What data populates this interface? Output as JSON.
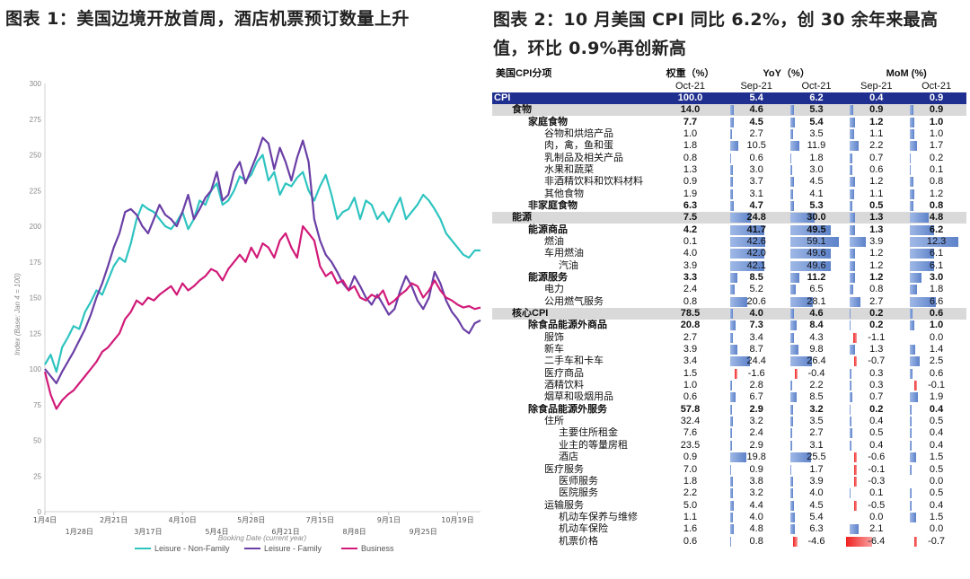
{
  "left": {
    "title": "图表 1：美国边境开放首周，酒店机票预订数量上升",
    "chart_data": {
      "type": "line",
      "title": "",
      "xlabel": "Booking Date (current year)",
      "ylabel": "Index (Base: Jan 4 = 100)",
      "ylim": [
        0,
        300
      ],
      "yticks": [
        0,
        25,
        50,
        75,
        100,
        125,
        150,
        175,
        200,
        225,
        250,
        275,
        300
      ],
      "xticks_top": [
        "1月4日",
        "2月21日",
        "4月10日",
        "5月28日",
        "7月15日",
        "9月1日",
        "10月19日"
      ],
      "xticks_bottom": [
        "1月28日",
        "3月17日",
        "5月4日",
        "6月21日",
        "8月8日",
        "9月25日"
      ],
      "x_range": [
        "1月4日",
        "11月1日"
      ],
      "legend_position": "bottom",
      "series": [
        {
          "name": "Leisure - Non-Family",
          "color": "#2ec4c0",
          "x": [
            0,
            4,
            8,
            12,
            16,
            20,
            24,
            28,
            32,
            36,
            40,
            44,
            48,
            52,
            56,
            60,
            64,
            68,
            72,
            76,
            80,
            84,
            88,
            92,
            96,
            100,
            104,
            108,
            112,
            116,
            120,
            124,
            128,
            132,
            136,
            140,
            144,
            148,
            152,
            156,
            160,
            164,
            168,
            172,
            176,
            180,
            184,
            188,
            192,
            196,
            200,
            204,
            208,
            212,
            216,
            220,
            224,
            228,
            232,
            236,
            240,
            244,
            248,
            252,
            256,
            260,
            264,
            268,
            272,
            276,
            280,
            284,
            288,
            292,
            296,
            300,
            304
          ],
          "values": [
            103,
            110,
            98,
            115,
            122,
            130,
            128,
            140,
            147,
            155,
            152,
            162,
            172,
            178,
            175,
            188,
            205,
            215,
            212,
            210,
            205,
            200,
            198,
            203,
            210,
            198,
            205,
            218,
            215,
            225,
            230,
            215,
            218,
            225,
            235,
            232,
            236,
            245,
            250,
            232,
            238,
            222,
            230,
            228,
            234,
            238,
            225,
            218,
            228,
            236,
            222,
            205,
            210,
            212,
            220,
            205,
            218,
            215,
            205,
            210,
            203,
            212,
            220,
            205,
            210,
            215,
            222,
            218,
            212,
            205,
            195,
            190,
            185,
            180,
            178,
            183,
            183
          ]
        },
        {
          "name": "Leisure - Family",
          "color": "#6a3fa6",
          "x": [
            0,
            4,
            8,
            12,
            16,
            20,
            24,
            28,
            32,
            36,
            40,
            44,
            48,
            52,
            56,
            60,
            64,
            68,
            72,
            76,
            80,
            84,
            88,
            92,
            96,
            100,
            104,
            108,
            112,
            116,
            120,
            124,
            128,
            132,
            136,
            140,
            144,
            148,
            152,
            156,
            160,
            164,
            168,
            172,
            176,
            180,
            184,
            188,
            192,
            196,
            200,
            204,
            208,
            212,
            216,
            220,
            224,
            228,
            232,
            236,
            240,
            244,
            248,
            252,
            256,
            260,
            264,
            268,
            272,
            276,
            280,
            284,
            288,
            292,
            296,
            300,
            304
          ],
          "values": [
            100,
            95,
            90,
            98,
            105,
            112,
            120,
            128,
            138,
            150,
            160,
            172,
            185,
            195,
            210,
            212,
            208,
            200,
            195,
            205,
            215,
            208,
            205,
            200,
            210,
            222,
            205,
            212,
            220,
            225,
            238,
            218,
            222,
            238,
            245,
            230,
            240,
            250,
            262,
            258,
            240,
            255,
            245,
            232,
            248,
            260,
            245,
            205,
            190,
            180,
            175,
            168,
            160,
            155,
            165,
            158,
            150,
            145,
            152,
            145,
            138,
            142,
            155,
            165,
            158,
            148,
            142,
            150,
            168,
            160,
            148,
            140,
            135,
            128,
            125,
            132,
            134
          ]
        },
        {
          "name": "Business",
          "color": "#d11a78",
          "x": [
            0,
            4,
            8,
            12,
            16,
            20,
            24,
            28,
            32,
            36,
            40,
            44,
            48,
            52,
            56,
            60,
            64,
            68,
            72,
            76,
            80,
            84,
            88,
            92,
            96,
            100,
            104,
            108,
            112,
            116,
            120,
            124,
            128,
            132,
            136,
            140,
            144,
            148,
            152,
            156,
            160,
            164,
            168,
            172,
            176,
            180,
            184,
            188,
            192,
            196,
            200,
            204,
            208,
            212,
            216,
            220,
            224,
            228,
            232,
            236,
            240,
            244,
            248,
            252,
            256,
            260,
            264,
            268,
            272,
            276,
            280,
            284,
            288,
            292,
            296,
            300,
            304
          ],
          "values": [
            98,
            82,
            72,
            78,
            82,
            85,
            90,
            95,
            100,
            105,
            112,
            115,
            120,
            125,
            135,
            140,
            148,
            145,
            150,
            148,
            152,
            155,
            158,
            152,
            160,
            155,
            158,
            162,
            165,
            170,
            168,
            162,
            170,
            175,
            180,
            175,
            185,
            178,
            188,
            185,
            178,
            190,
            195,
            185,
            178,
            200,
            195,
            190,
            172,
            165,
            168,
            160,
            162,
            155,
            158,
            150,
            148,
            152,
            150,
            155,
            145,
            148,
            152,
            155,
            160,
            158,
            150,
            155,
            162,
            155,
            150,
            148,
            145,
            143,
            144,
            142,
            143
          ]
        }
      ]
    }
  },
  "right": {
    "title": "图表 2：10 月美国 CPI 同比 6.2%，创 30 余年来最高值，环比 0.9%再创新高",
    "header": {
      "item": "美国CPI分项",
      "weight": "权重（%）",
      "yoy": "YoY（%）",
      "mom": "MoM (%)",
      "weight_period": "Oct-21",
      "yoy_sep": "Sep-21",
      "yoy_oct": "Oct-21",
      "mom_sep": "Sep-21",
      "mom_oct": "Oct-21"
    },
    "rows": [
      {
        "name": "CPI",
        "level": 0,
        "style": "cpi",
        "weight": "100.0",
        "yoy_sep": 5.4,
        "yoy_oct": 6.2,
        "mom_sep": 0.4,
        "mom_oct": 0.9
      },
      {
        "name": "食物",
        "level": 1,
        "style": "grey",
        "weight": "14.0",
        "yoy_sep": 4.6,
        "yoy_oct": 5.3,
        "mom_sep": 0.9,
        "mom_oct": 0.9
      },
      {
        "name": "家庭食物",
        "level": 2,
        "style": "bold",
        "weight": "7.7",
        "yoy_sep": 4.5,
        "yoy_oct": 5.4,
        "mom_sep": 1.2,
        "mom_oct": 1.0
      },
      {
        "name": "谷物和烘焙产品",
        "level": 3,
        "style": "",
        "weight": "1.0",
        "yoy_sep": 2.7,
        "yoy_oct": 3.5,
        "mom_sep": 1.1,
        "mom_oct": 1.0
      },
      {
        "name": "肉，禽，鱼和蛋",
        "level": 3,
        "style": "",
        "weight": "1.8",
        "yoy_sep": 10.5,
        "yoy_oct": 11.9,
        "mom_sep": 2.2,
        "mom_oct": 1.7
      },
      {
        "name": "乳制品及相关产品",
        "level": 3,
        "style": "",
        "weight": "0.8",
        "yoy_sep": 0.6,
        "yoy_oct": 1.8,
        "mom_sep": 0.7,
        "mom_oct": 0.2
      },
      {
        "name": "水果和蔬菜",
        "level": 3,
        "style": "",
        "weight": "1.3",
        "yoy_sep": 3.0,
        "yoy_oct": 3.0,
        "mom_sep": 0.6,
        "mom_oct": 0.1
      },
      {
        "name": "非酒精饮料和饮料材料",
        "level": 3,
        "style": "",
        "weight": "0.9",
        "yoy_sep": 3.7,
        "yoy_oct": 4.5,
        "mom_sep": 1.2,
        "mom_oct": 0.8
      },
      {
        "name": "其他食物",
        "level": 3,
        "style": "",
        "weight": "1.9",
        "yoy_sep": 3.1,
        "yoy_oct": 4.1,
        "mom_sep": 1.1,
        "mom_oct": 1.2
      },
      {
        "name": "非家庭食物",
        "level": 2,
        "style": "bold",
        "weight": "6.3",
        "yoy_sep": 4.7,
        "yoy_oct": 5.3,
        "mom_sep": 0.5,
        "mom_oct": 0.8
      },
      {
        "name": "能源",
        "level": 1,
        "style": "grey",
        "weight": "7.5",
        "yoy_sep": 24.8,
        "yoy_oct": 30.0,
        "mom_sep": 1.3,
        "mom_oct": 4.8
      },
      {
        "name": "能源商品",
        "level": 2,
        "style": "bold",
        "weight": "4.2",
        "yoy_sep": 41.7,
        "yoy_oct": 49.5,
        "mom_sep": 1.3,
        "mom_oct": 6.2
      },
      {
        "name": "燃油",
        "level": 3,
        "style": "",
        "weight": "0.1",
        "yoy_sep": 42.6,
        "yoy_oct": 59.1,
        "mom_sep": 3.9,
        "mom_oct": 12.3
      },
      {
        "name": "车用燃油",
        "level": 3,
        "style": "",
        "weight": "4.0",
        "yoy_sep": 42.0,
        "yoy_oct": 49.6,
        "mom_sep": 1.2,
        "mom_oct": 6.1
      },
      {
        "name": "汽油",
        "level": 4,
        "style": "",
        "weight": "3.9",
        "yoy_sep": 42.1,
        "yoy_oct": 49.6,
        "mom_sep": 1.2,
        "mom_oct": 6.1
      },
      {
        "name": "能源服务",
        "level": 2,
        "style": "bold",
        "weight": "3.3",
        "yoy_sep": 8.5,
        "yoy_oct": 11.2,
        "mom_sep": 1.2,
        "mom_oct": 3.0
      },
      {
        "name": "电力",
        "level": 3,
        "style": "",
        "weight": "2.4",
        "yoy_sep": 5.2,
        "yoy_oct": 6.5,
        "mom_sep": 0.8,
        "mom_oct": 1.8
      },
      {
        "name": "公用燃气服务",
        "level": 3,
        "style": "",
        "weight": "0.8",
        "yoy_sep": 20.6,
        "yoy_oct": 28.1,
        "mom_sep": 2.7,
        "mom_oct": 6.6
      },
      {
        "name": "核心CPI",
        "level": 1,
        "style": "grey",
        "weight": "78.5",
        "yoy_sep": 4.0,
        "yoy_oct": 4.6,
        "mom_sep": 0.2,
        "mom_oct": 0.6
      },
      {
        "name": "除食品能源外商品",
        "level": 2,
        "style": "bold",
        "weight": "20.8",
        "yoy_sep": 7.3,
        "yoy_oct": 8.4,
        "mom_sep": 0.2,
        "mom_oct": 1.0
      },
      {
        "name": "服饰",
        "level": 3,
        "style": "",
        "weight": "2.7",
        "yoy_sep": 3.4,
        "yoy_oct": 4.3,
        "mom_sep": -1.1,
        "mom_oct": 0.0
      },
      {
        "name": "新车",
        "level": 3,
        "style": "",
        "weight": "3.9",
        "yoy_sep": 8.7,
        "yoy_oct": 9.8,
        "mom_sep": 1.3,
        "mom_oct": 1.4
      },
      {
        "name": "二手车和卡车",
        "level": 3,
        "style": "",
        "weight": "3.4",
        "yoy_sep": 24.4,
        "yoy_oct": 26.4,
        "mom_sep": -0.7,
        "mom_oct": 2.5
      },
      {
        "name": "医疗商品",
        "level": 3,
        "style": "",
        "weight": "1.5",
        "yoy_sep": -1.6,
        "yoy_oct": -0.4,
        "mom_sep": 0.3,
        "mom_oct": 0.6
      },
      {
        "name": "酒精饮料",
        "level": 3,
        "style": "",
        "weight": "1.0",
        "yoy_sep": 2.8,
        "yoy_oct": 2.2,
        "mom_sep": 0.3,
        "mom_oct": -0.1
      },
      {
        "name": "烟草和吸烟用品",
        "level": 3,
        "style": "",
        "weight": "0.6",
        "yoy_sep": 6.7,
        "yoy_oct": 8.5,
        "mom_sep": 0.7,
        "mom_oct": 1.9
      },
      {
        "name": "除食品能源外服务",
        "level": 2,
        "style": "bold",
        "weight": "57.8",
        "yoy_sep": 2.9,
        "yoy_oct": 3.2,
        "mom_sep": 0.2,
        "mom_oct": 0.4
      },
      {
        "name": "住所",
        "level": 3,
        "style": "",
        "weight": "32.4",
        "yoy_sep": 3.2,
        "yoy_oct": 3.5,
        "mom_sep": 0.4,
        "mom_oct": 0.5
      },
      {
        "name": "主要住所租金",
        "level": 4,
        "style": "",
        "weight": "7.6",
        "yoy_sep": 2.4,
        "yoy_oct": 2.7,
        "mom_sep": 0.5,
        "mom_oct": 0.4
      },
      {
        "name": "业主的等量房租",
        "level": 4,
        "style": "",
        "weight": "23.5",
        "yoy_sep": 2.9,
        "yoy_oct": 3.1,
        "mom_sep": 0.4,
        "mom_oct": 0.4
      },
      {
        "name": "酒店",
        "level": 4,
        "style": "",
        "weight": "0.9",
        "yoy_sep": 19.8,
        "yoy_oct": 25.5,
        "mom_sep": -0.6,
        "mom_oct": 1.5
      },
      {
        "name": "医疗服务",
        "level": 3,
        "style": "",
        "weight": "7.0",
        "yoy_sep": 0.9,
        "yoy_oct": 1.7,
        "mom_sep": -0.1,
        "mom_oct": 0.5
      },
      {
        "name": "医师服务",
        "level": 4,
        "style": "",
        "weight": "1.8",
        "yoy_sep": 3.8,
        "yoy_oct": 3.9,
        "mom_sep": -0.3,
        "mom_oct": 0.0
      },
      {
        "name": "医院服务",
        "level": 4,
        "style": "",
        "weight": "2.2",
        "yoy_sep": 3.2,
        "yoy_oct": 4.0,
        "mom_sep": 0.1,
        "mom_oct": 0.5
      },
      {
        "name": "运输服务",
        "level": 3,
        "style": "",
        "weight": "5.0",
        "yoy_sep": 4.4,
        "yoy_oct": 4.5,
        "mom_sep": -0.5,
        "mom_oct": 0.4
      },
      {
        "name": "机动车保养与维修",
        "level": 4,
        "style": "",
        "weight": "1.1",
        "yoy_sep": 4.0,
        "yoy_oct": 5.4,
        "mom_sep": 0.0,
        "mom_oct": 1.5
      },
      {
        "name": "机动车保险",
        "level": 4,
        "style": "",
        "weight": "1.6",
        "yoy_sep": 4.8,
        "yoy_oct": 6.3,
        "mom_sep": 2.1,
        "mom_oct": 0.0
      },
      {
        "name": "机票价格",
        "level": 4,
        "style": "",
        "weight": "0.6",
        "yoy_sep": 0.8,
        "yoy_oct": -4.6,
        "mom_sep": -6.4,
        "mom_oct": -0.7
      }
    ]
  }
}
